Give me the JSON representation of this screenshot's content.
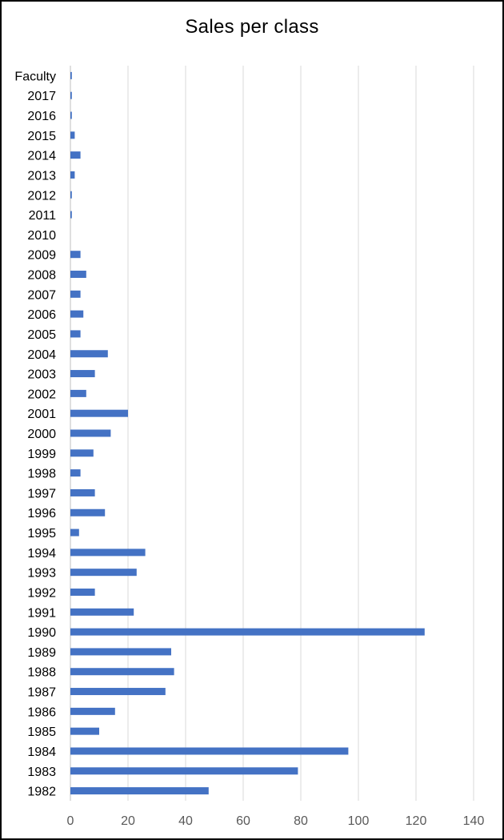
{
  "chart_data": {
    "type": "bar",
    "orientation": "horizontal",
    "title": "Sales per class",
    "xlabel": "",
    "ylabel": "",
    "xlim": [
      0,
      140
    ],
    "x_ticks": [
      0,
      20,
      40,
      60,
      80,
      100,
      120,
      140
    ],
    "grid": true,
    "legend": "none",
    "bar_color": "#4472C4",
    "categories": [
      "Faculty",
      "2017",
      "2016",
      "2015",
      "2014",
      "2013",
      "2012",
      "2011",
      "2010",
      "2009",
      "2008",
      "2007",
      "2006",
      "2005",
      "2004",
      "2003",
      "2002",
      "2001",
      "2000",
      "1999",
      "1998",
      "1997",
      "1996",
      "1995",
      "1994",
      "1993",
      "1992",
      "1991",
      "1990",
      "1989",
      "1988",
      "1987",
      "1986",
      "1985",
      "1984",
      "1983",
      "1982"
    ],
    "values": [
      0.5,
      0.5,
      0.5,
      1.5,
      3.5,
      1.5,
      0.5,
      0.5,
      0,
      3.5,
      5.5,
      3.5,
      4.5,
      3.5,
      13,
      8.5,
      5.5,
      20,
      14,
      8,
      3.5,
      8.5,
      12,
      3,
      26,
      23,
      8.5,
      22,
      123,
      35,
      36,
      33,
      15.5,
      10,
      96.5,
      79,
      48
    ]
  }
}
